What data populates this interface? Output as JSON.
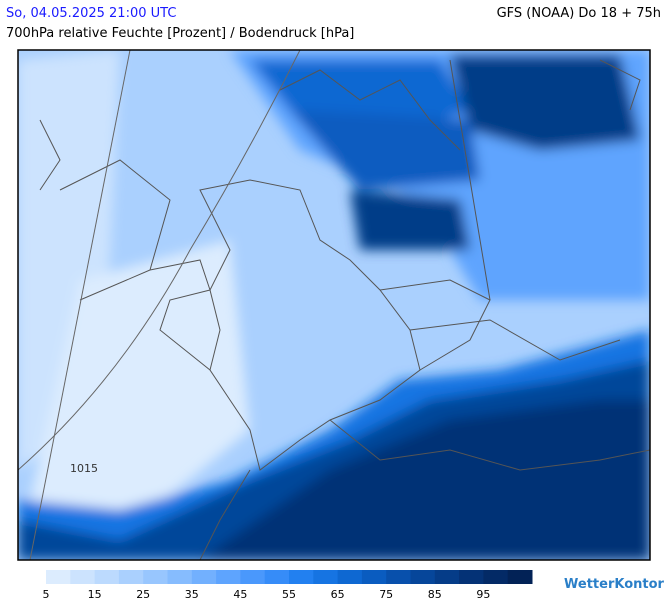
{
  "header": {
    "datetime": "So, 04.05.2025 21:00 UTC",
    "model": "GFS (NOAA) Do 18 + 75h",
    "subtitle": "700hPa relative Feuchte [Prozent] / Bodendruck [hPa]"
  },
  "map": {
    "isobar_labels": [
      "1015"
    ]
  },
  "colorbar": {
    "range": [
      5,
      105
    ],
    "ticks": [
      5,
      15,
      25,
      35,
      45,
      55,
      65,
      75,
      85,
      95
    ],
    "colors": [
      "#dcecfe",
      "#cce3fe",
      "#bcdafe",
      "#aad0fe",
      "#98c6fe",
      "#86bcfe",
      "#72b0fe",
      "#5ea4fe",
      "#4a98fc",
      "#368cf8",
      "#2280f0",
      "#1674e2",
      "#0e68d2",
      "#0a5cc0",
      "#0850ac",
      "#06469a",
      "#053c88",
      "#043276",
      "#032a66",
      "#022256"
    ]
  },
  "logo": "WetterKontor"
}
